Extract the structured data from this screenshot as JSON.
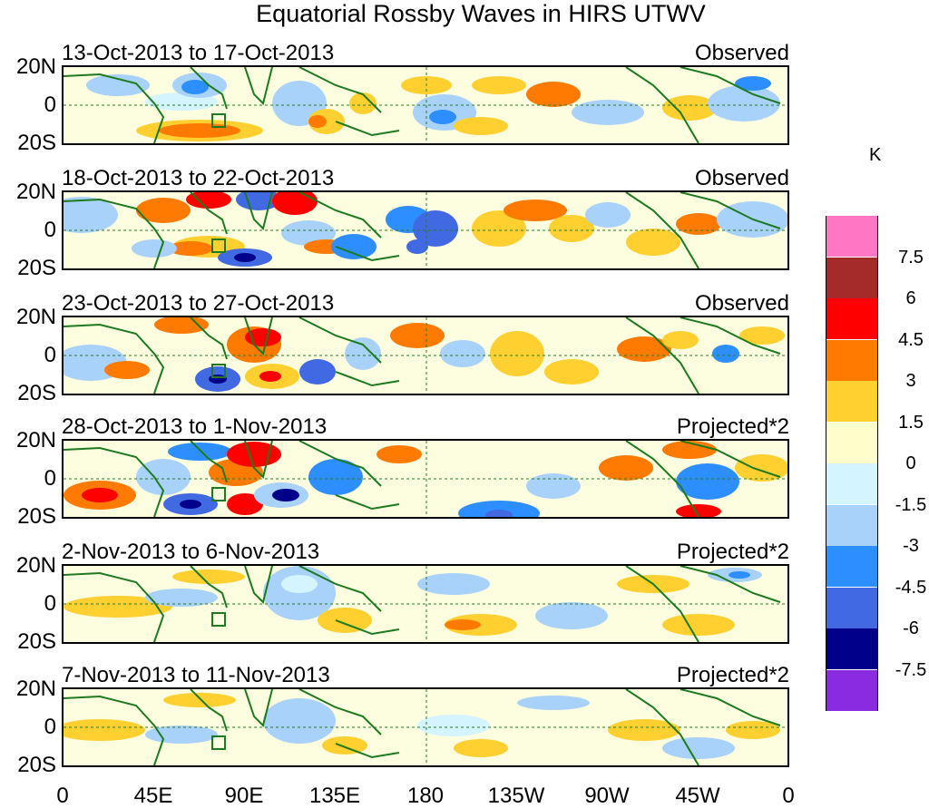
{
  "title": "Equatorial Rossby Waves in HIRS UTWV",
  "lat_labels": [
    "20N",
    "0",
    "20S"
  ],
  "lon_labels": [
    "0",
    "45E",
    "90E",
    "135E",
    "180",
    "135W",
    "90W",
    "45W",
    "0"
  ],
  "panels": [
    {
      "date": "13-Oct-2013 to 17-Oct-2013",
      "type": "Observed"
    },
    {
      "date": "18-Oct-2013 to 22-Oct-2013",
      "type": "Observed"
    },
    {
      "date": "23-Oct-2013 to 27-Oct-2013",
      "type": "Observed"
    },
    {
      "date": "28-Oct-2013 to 1-Nov-2013",
      "type": "Projected*2"
    },
    {
      "date": "2-Nov-2013 to 6-Nov-2013",
      "type": "Projected*2"
    },
    {
      "date": "7-Nov-2013 to 11-Nov-2013",
      "type": "Projected*2"
    }
  ],
  "colorbar": {
    "unit": "K",
    "labels": [
      "7.5",
      "6",
      "4.5",
      "3",
      "1.5",
      "0",
      "-1.5",
      "-3",
      "-4.5",
      "-6",
      "-7.5"
    ],
    "colors": [
      "#ff77c4",
      "#a52a2a",
      "#ff0000",
      "#ff7a00",
      "#ffd030",
      "#ffffcc",
      "#d4f4ff",
      "#a8d2fa",
      "#2d8fff",
      "#4169e1",
      "#00008b",
      "#8a2be2"
    ]
  }
}
